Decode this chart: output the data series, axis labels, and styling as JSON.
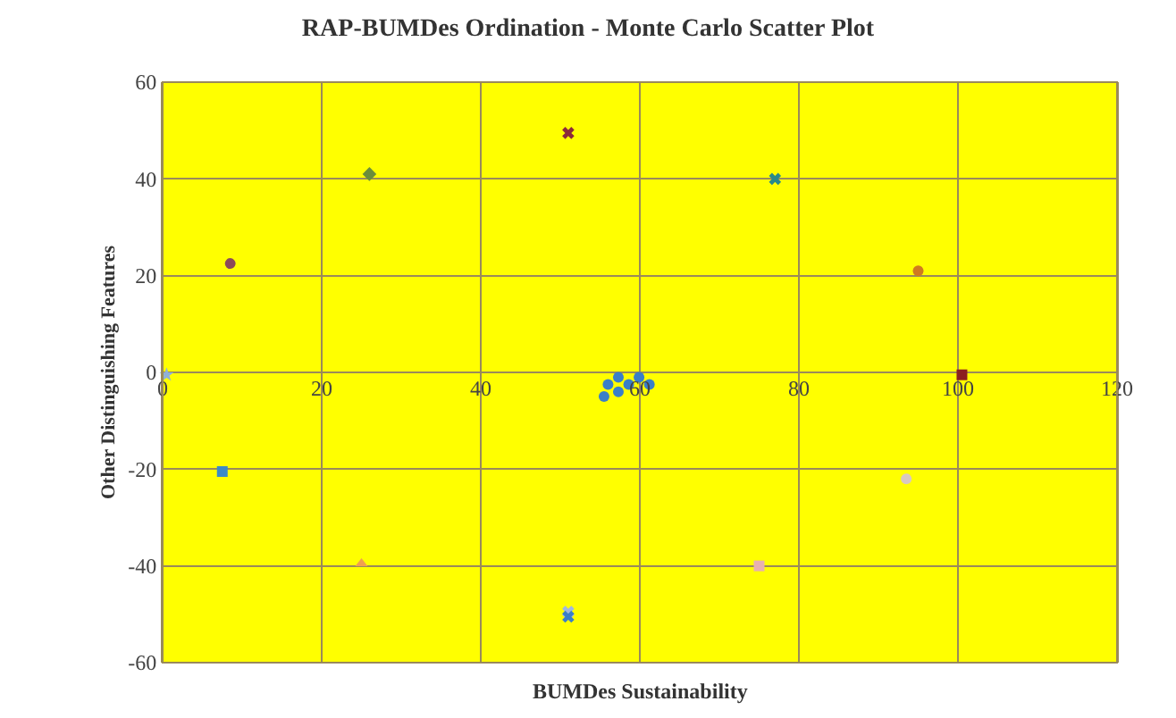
{
  "chart_data": {
    "type": "scatter",
    "title": "RAP-BUMDes Ordination - Monte Carlo Scatter Plot",
    "xlabel": "BUMDes Sustainability",
    "ylabel": "Other Distinguishing Features",
    "xlim": [
      0,
      120
    ],
    "xticks": [
      0,
      20,
      40,
      60,
      80,
      100,
      120
    ],
    "ylim": [
      -60,
      60
    ],
    "yticks": [
      -60,
      -40,
      -20,
      0,
      20,
      40,
      60
    ],
    "grid": true,
    "series": [
      {
        "color": "#3a7fc8",
        "marker": "circle",
        "x": [
          56,
          57.3,
          57.3,
          58.6,
          59.9,
          55.5,
          61.2
        ],
        "values": [
          -2.5,
          -1,
          -4,
          -2.5,
          -1,
          -5,
          -2.5
        ]
      },
      {
        "color": "#8b4a5a",
        "marker": "circle",
        "x": [
          8.5
        ],
        "values": [
          22.5
        ]
      },
      {
        "color": "#6b8e3a",
        "marker": "diamond",
        "x": [
          26
        ],
        "values": [
          41
        ]
      },
      {
        "color": "#8b2a3a",
        "marker": "cross",
        "x": [
          51
        ],
        "values": [
          49.5
        ]
      },
      {
        "color": "#2a8a8a",
        "marker": "cross",
        "x": [
          77
        ],
        "values": [
          40
        ]
      },
      {
        "color": "#d07a20",
        "marker": "circle",
        "x": [
          95
        ],
        "values": [
          21
        ]
      },
      {
        "color": "#8b2020",
        "marker": "square",
        "x": [
          100.5
        ],
        "values": [
          -0.5
        ]
      },
      {
        "color": "#90b0d8",
        "marker": "star",
        "x": [
          0.5
        ],
        "values": [
          -0.5
        ]
      },
      {
        "color": "#3a8ac8",
        "marker": "square",
        "x": [
          7.5
        ],
        "values": [
          -20.5
        ]
      },
      {
        "color": "#f0a050",
        "marker": "triangle",
        "x": [
          25
        ],
        "values": [
          -39.5
        ]
      },
      {
        "color": "#a0b8e0",
        "marker": "cross",
        "x": [
          51
        ],
        "values": [
          -49.5
        ]
      },
      {
        "color": "#3a7fc8",
        "marker": "cross",
        "x": [
          51
        ],
        "values": [
          -50.5
        ]
      },
      {
        "color": "#d8c8c0",
        "marker": "circle",
        "x": [
          93.5
        ],
        "values": [
          -22
        ]
      },
      {
        "color": "#e8b0b0",
        "marker": "square",
        "x": [
          75
        ],
        "values": [
          -40
        ]
      }
    ]
  }
}
